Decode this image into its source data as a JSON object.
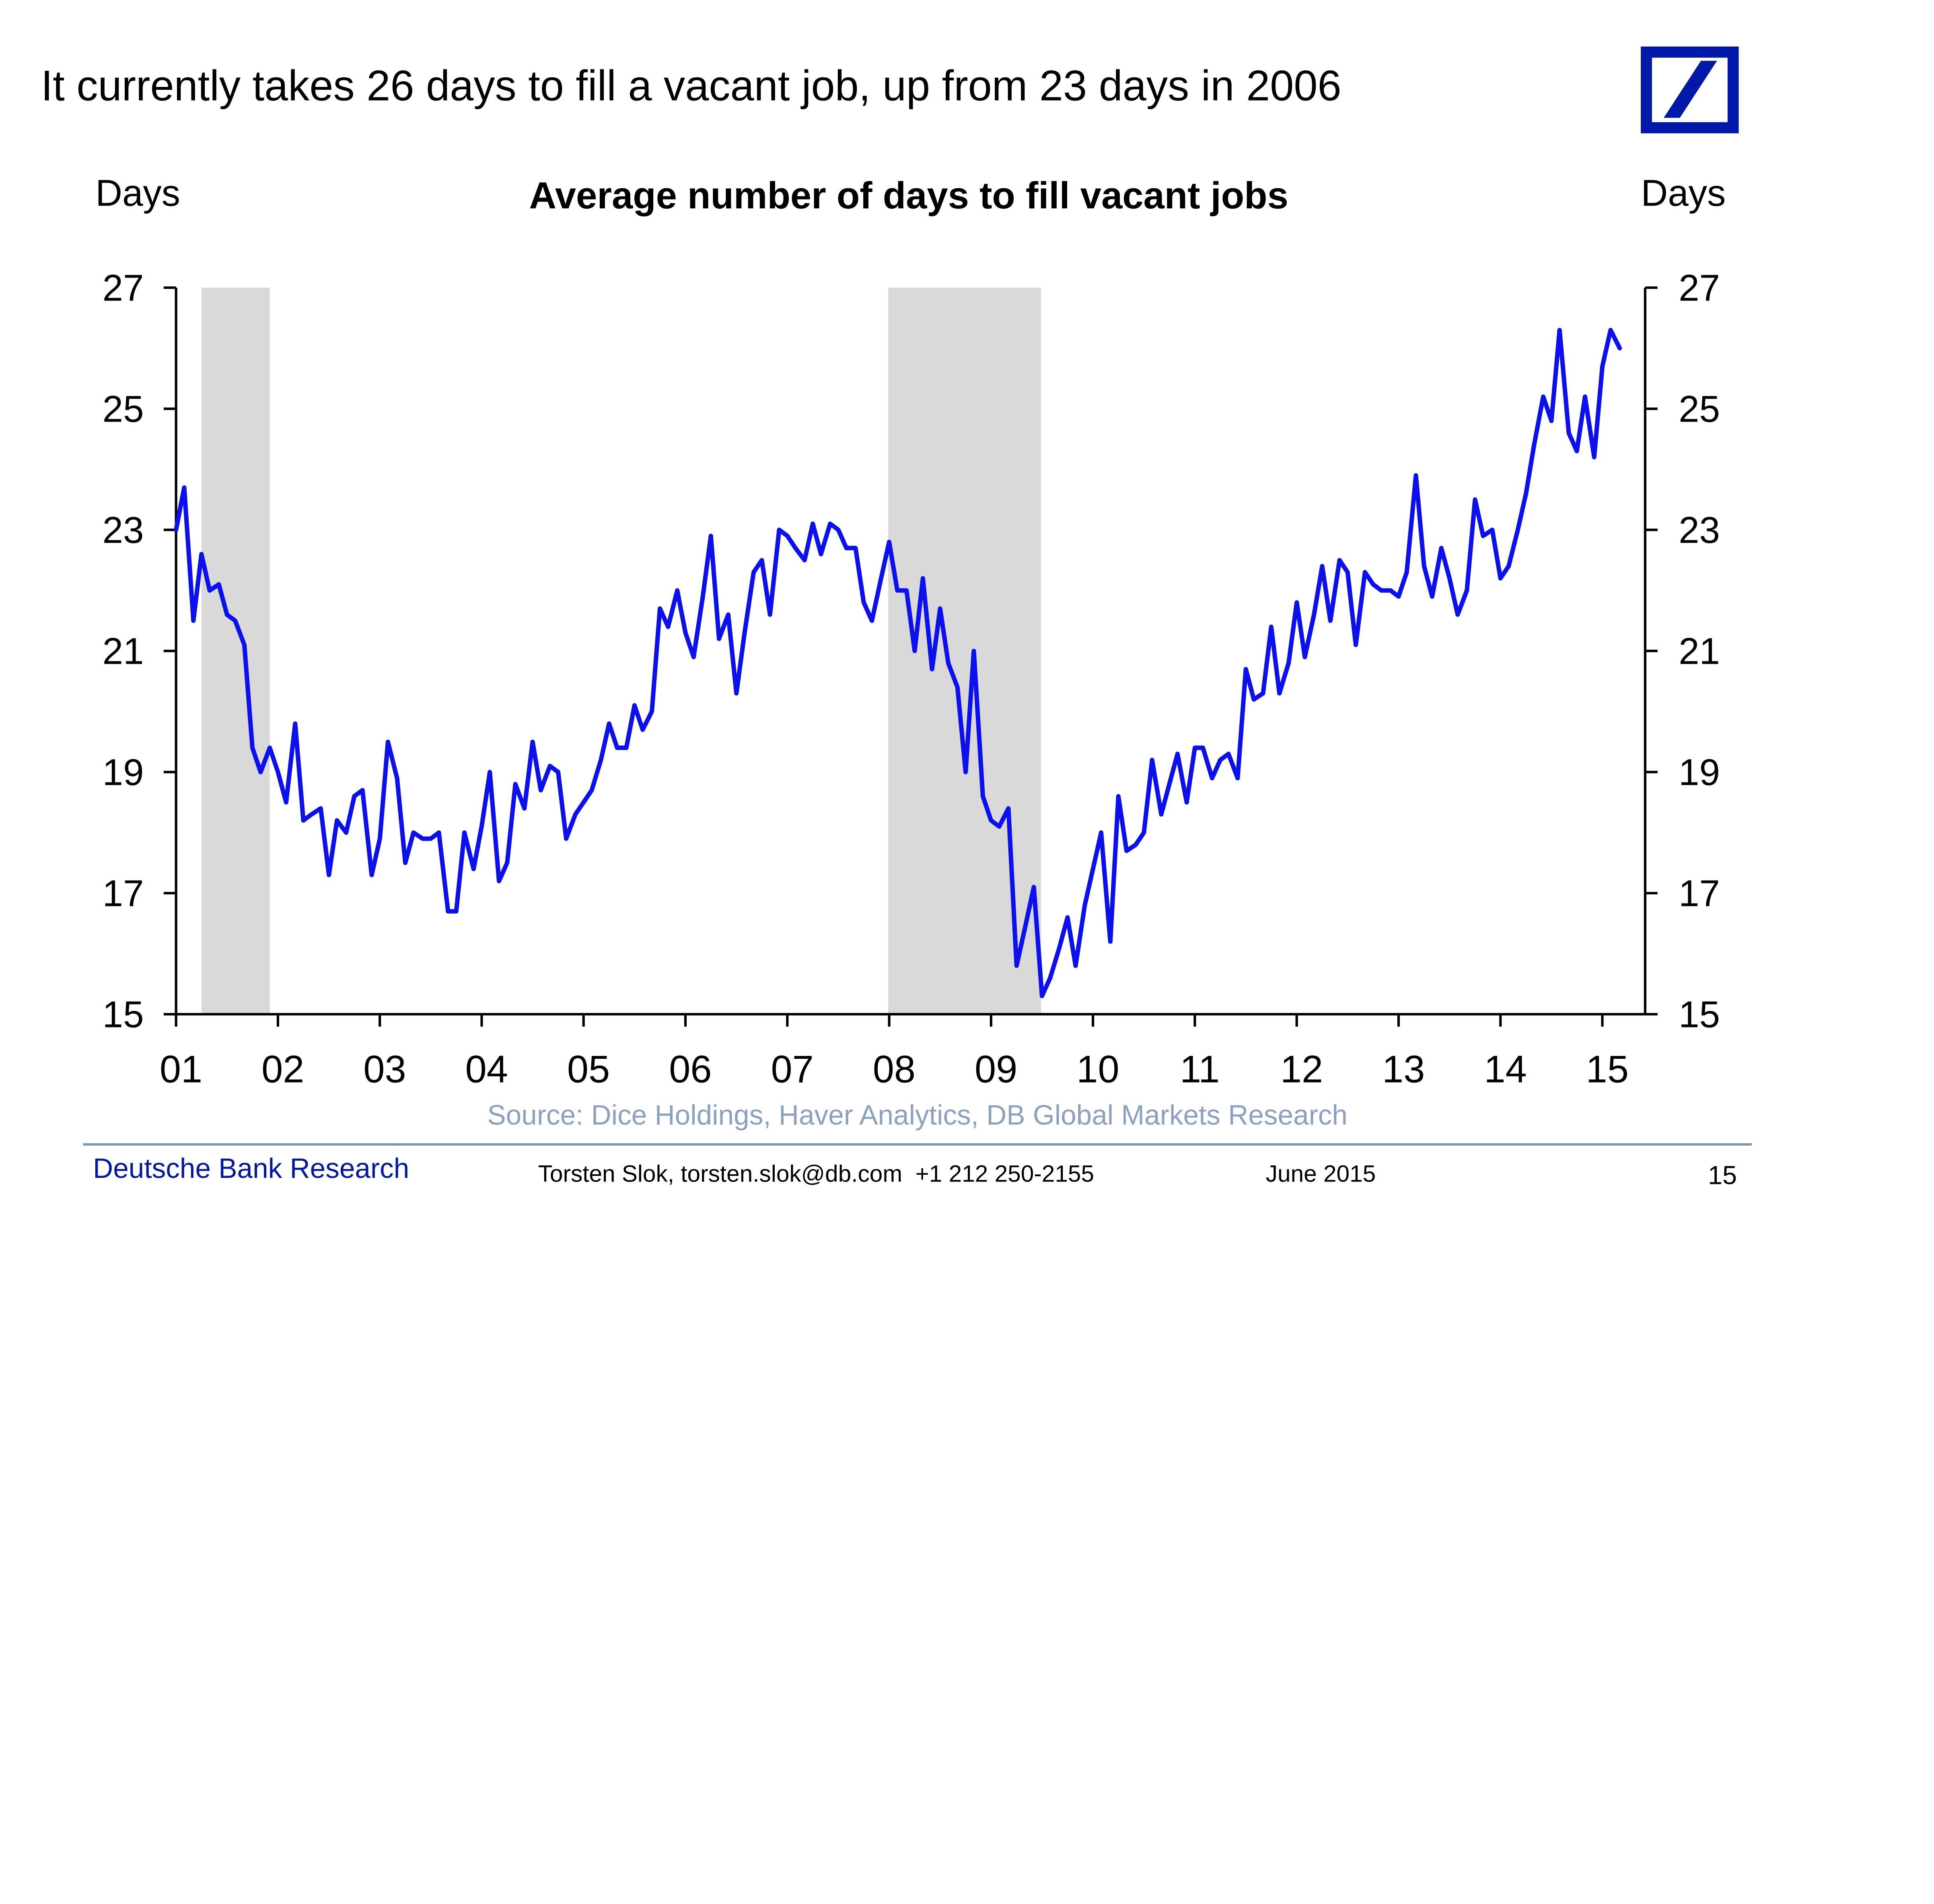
{
  "slide": {
    "headline": "It currently takes 26 days to fill a vacant job, up from 23 days in 2006",
    "logo": {
      "name": "deutsche-bank-logo",
      "color": "#0018A8"
    }
  },
  "footer": {
    "brand": "Deutsche Bank Research",
    "contact": "Torsten Slok, torsten.slok@db.com  +1 212 250-2155",
    "date": "June 2015",
    "page_number": "15",
    "rule_color": "#7F96B2",
    "brand_color": "#0018A8"
  },
  "chart_data": {
    "type": "line",
    "title": "Average number of days to fill vacant jobs",
    "ylabel_left": "Days",
    "ylabel_right": "Days",
    "source": "Source: Dice Holdings, Haver Analytics, DB Global Markets Research",
    "ylim": [
      15,
      27
    ],
    "xlim": [
      2001.0,
      2015.42
    ],
    "y_ticks": [
      {
        "value": 15,
        "label": "15"
      },
      {
        "value": 17,
        "label": "17"
      },
      {
        "value": 19,
        "label": "19"
      },
      {
        "value": 21,
        "label": "21"
      },
      {
        "value": 23,
        "label": "23"
      },
      {
        "value": 25,
        "label": "25"
      },
      {
        "value": 27,
        "label": "27"
      }
    ],
    "x_ticks": [
      {
        "value": 2001,
        "label": "01"
      },
      {
        "value": 2002,
        "label": "02"
      },
      {
        "value": 2003,
        "label": "03"
      },
      {
        "value": 2004,
        "label": "04"
      },
      {
        "value": 2005,
        "label": "05"
      },
      {
        "value": 2006,
        "label": "06"
      },
      {
        "value": 2007,
        "label": "07"
      },
      {
        "value": 2008,
        "label": "08"
      },
      {
        "value": 2009,
        "label": "09"
      },
      {
        "value": 2010,
        "label": "10"
      },
      {
        "value": 2011,
        "label": "11"
      },
      {
        "value": 2012,
        "label": "12"
      },
      {
        "value": 2013,
        "label": "13"
      },
      {
        "value": 2014,
        "label": "14"
      },
      {
        "value": 2015,
        "label": "15"
      }
    ],
    "recessions": [
      {
        "start": 2001.25,
        "end": 2001.92
      },
      {
        "start": 2007.99,
        "end": 2009.49
      }
    ],
    "grid": false,
    "colors": {
      "line": "#0A10EE",
      "recession": "#D9D9D9",
      "axis": "#000000",
      "source_text": "#8CA0BF"
    },
    "series": [
      {
        "name": "Average number of days to fill vacant jobs",
        "points": [
          [
            2001.0,
            23.0
          ],
          [
            2001.08,
            23.7
          ],
          [
            2001.17,
            21.5
          ],
          [
            2001.25,
            22.6
          ],
          [
            2001.33,
            22.0
          ],
          [
            2001.42,
            22.1
          ],
          [
            2001.5,
            21.6
          ],
          [
            2001.58,
            21.5
          ],
          [
            2001.67,
            21.1
          ],
          [
            2001.75,
            19.4
          ],
          [
            2001.83,
            19.0
          ],
          [
            2001.92,
            19.4
          ],
          [
            2002.0,
            19.0
          ],
          [
            2002.08,
            18.5
          ],
          [
            2002.17,
            19.8
          ],
          [
            2002.25,
            18.2
          ],
          [
            2002.33,
            18.3
          ],
          [
            2002.42,
            18.4
          ],
          [
            2002.5,
            17.3
          ],
          [
            2002.58,
            18.2
          ],
          [
            2002.67,
            18.0
          ],
          [
            2002.75,
            18.6
          ],
          [
            2002.83,
            18.7
          ],
          [
            2002.92,
            17.3
          ],
          [
            2003.0,
            17.9
          ],
          [
            2003.08,
            19.5
          ],
          [
            2003.17,
            18.9
          ],
          [
            2003.25,
            17.5
          ],
          [
            2003.33,
            18.0
          ],
          [
            2003.42,
            17.9
          ],
          [
            2003.5,
            17.9
          ],
          [
            2003.58,
            18.0
          ],
          [
            2003.67,
            16.7
          ],
          [
            2003.75,
            16.7
          ],
          [
            2003.83,
            18.0
          ],
          [
            2003.92,
            17.4
          ],
          [
            2004.0,
            18.1
          ],
          [
            2004.08,
            19.0
          ],
          [
            2004.17,
            17.2
          ],
          [
            2004.25,
            17.5
          ],
          [
            2004.33,
            18.8
          ],
          [
            2004.42,
            18.4
          ],
          [
            2004.5,
            19.5
          ],
          [
            2004.58,
            18.7
          ],
          [
            2004.67,
            19.1
          ],
          [
            2004.75,
            19.0
          ],
          [
            2004.83,
            17.9
          ],
          [
            2004.92,
            18.3
          ],
          [
            2005.0,
            18.5
          ],
          [
            2005.08,
            18.7
          ],
          [
            2005.17,
            19.2
          ],
          [
            2005.25,
            19.8
          ],
          [
            2005.33,
            19.4
          ],
          [
            2005.42,
            19.4
          ],
          [
            2005.5,
            20.1
          ],
          [
            2005.58,
            19.7
          ],
          [
            2005.67,
            20.0
          ],
          [
            2005.75,
            21.7
          ],
          [
            2005.83,
            21.4
          ],
          [
            2005.92,
            22.0
          ],
          [
            2006.0,
            21.3
          ],
          [
            2006.08,
            20.9
          ],
          [
            2006.17,
            21.9
          ],
          [
            2006.25,
            22.9
          ],
          [
            2006.33,
            21.2
          ],
          [
            2006.42,
            21.6
          ],
          [
            2006.5,
            20.3
          ],
          [
            2006.58,
            21.3
          ],
          [
            2006.67,
            22.3
          ],
          [
            2006.75,
            22.5
          ],
          [
            2006.83,
            21.6
          ],
          [
            2006.92,
            23.0
          ],
          [
            2007.0,
            22.9
          ],
          [
            2007.08,
            22.7
          ],
          [
            2007.17,
            22.5
          ],
          [
            2007.25,
            23.1
          ],
          [
            2007.33,
            22.6
          ],
          [
            2007.42,
            23.1
          ],
          [
            2007.5,
            23.0
          ],
          [
            2007.58,
            22.7
          ],
          [
            2007.67,
            22.7
          ],
          [
            2007.75,
            21.8
          ],
          [
            2007.83,
            21.5
          ],
          [
            2007.92,
            22.2
          ],
          [
            2008.0,
            22.8
          ],
          [
            2008.08,
            22.0
          ],
          [
            2008.17,
            22.0
          ],
          [
            2008.25,
            21.0
          ],
          [
            2008.33,
            22.2
          ],
          [
            2008.42,
            20.7
          ],
          [
            2008.5,
            21.7
          ],
          [
            2008.58,
            20.8
          ],
          [
            2008.67,
            20.4
          ],
          [
            2008.75,
            19.0
          ],
          [
            2008.83,
            21.0
          ],
          [
            2008.92,
            18.6
          ],
          [
            2009.0,
            18.2
          ],
          [
            2009.08,
            18.1
          ],
          [
            2009.17,
            18.4
          ],
          [
            2009.25,
            15.8
          ],
          [
            2009.33,
            16.4
          ],
          [
            2009.42,
            17.1
          ],
          [
            2009.5,
            15.3
          ],
          [
            2009.58,
            15.6
          ],
          [
            2009.67,
            16.1
          ],
          [
            2009.75,
            16.6
          ],
          [
            2009.83,
            15.8
          ],
          [
            2009.92,
            16.8
          ],
          [
            2010.0,
            17.4
          ],
          [
            2010.08,
            18.0
          ],
          [
            2010.17,
            16.2
          ],
          [
            2010.25,
            18.6
          ],
          [
            2010.33,
            17.7
          ],
          [
            2010.42,
            17.8
          ],
          [
            2010.5,
            18.0
          ],
          [
            2010.58,
            19.2
          ],
          [
            2010.67,
            18.3
          ],
          [
            2010.75,
            18.8
          ],
          [
            2010.83,
            19.3
          ],
          [
            2010.92,
            18.5
          ],
          [
            2011.0,
            19.4
          ],
          [
            2011.08,
            19.4
          ],
          [
            2011.17,
            18.9
          ],
          [
            2011.25,
            19.2
          ],
          [
            2011.33,
            19.3
          ],
          [
            2011.42,
            18.9
          ],
          [
            2011.5,
            20.7
          ],
          [
            2011.58,
            20.2
          ],
          [
            2011.67,
            20.3
          ],
          [
            2011.75,
            21.4
          ],
          [
            2011.83,
            20.3
          ],
          [
            2011.92,
            20.8
          ],
          [
            2012.0,
            21.8
          ],
          [
            2012.08,
            20.9
          ],
          [
            2012.17,
            21.6
          ],
          [
            2012.25,
            22.4
          ],
          [
            2012.33,
            21.5
          ],
          [
            2012.42,
            22.5
          ],
          [
            2012.5,
            22.3
          ],
          [
            2012.58,
            21.1
          ],
          [
            2012.67,
            22.3
          ],
          [
            2012.75,
            22.1
          ],
          [
            2012.83,
            22.0
          ],
          [
            2012.92,
            22.0
          ],
          [
            2013.0,
            21.9
          ],
          [
            2013.08,
            22.3
          ],
          [
            2013.17,
            23.9
          ],
          [
            2013.25,
            22.4
          ],
          [
            2013.33,
            21.9
          ],
          [
            2013.42,
            22.7
          ],
          [
            2013.5,
            22.2
          ],
          [
            2013.58,
            21.6
          ],
          [
            2013.67,
            22.0
          ],
          [
            2013.75,
            23.5
          ],
          [
            2013.83,
            22.9
          ],
          [
            2013.92,
            23.0
          ],
          [
            2014.0,
            22.2
          ],
          [
            2014.08,
            22.4
          ],
          [
            2014.17,
            23.0
          ],
          [
            2014.25,
            23.6
          ],
          [
            2014.33,
            24.4
          ],
          [
            2014.42,
            25.2
          ],
          [
            2014.5,
            24.8
          ],
          [
            2014.58,
            26.3
          ],
          [
            2014.67,
            24.6
          ],
          [
            2014.75,
            24.3
          ],
          [
            2014.83,
            25.2
          ],
          [
            2014.92,
            24.2
          ],
          [
            2015.0,
            25.7
          ],
          [
            2015.08,
            26.3
          ],
          [
            2015.17,
            26.0
          ]
        ]
      }
    ]
  }
}
